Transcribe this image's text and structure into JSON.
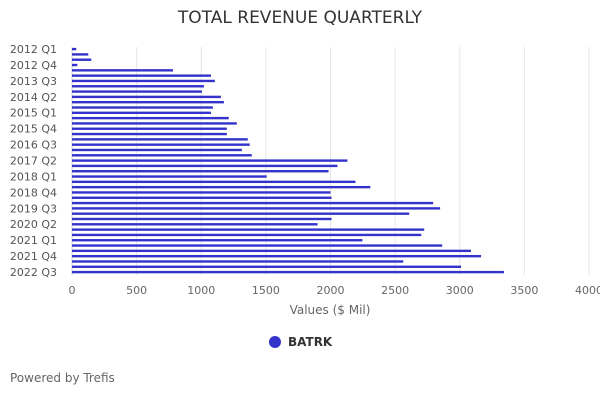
{
  "chart_data": {
    "type": "bar",
    "orientation": "horizontal",
    "title": "TOTAL REVENUE QUARTERLY",
    "xlabel": "Values ($ Mil)",
    "ylabel": "",
    "xlim": [
      0,
      4000
    ],
    "xticks": [
      0,
      500,
      1000,
      1500,
      2000,
      2500,
      3000,
      3500,
      4000
    ],
    "grid": true,
    "legend_placement": "bottom",
    "categories": [
      "2012 Q1",
      "2012 Q2",
      "2012 Q3",
      "2012 Q4",
      "2013 Q1",
      "2013 Q2",
      "2013 Q3",
      "2013 Q4",
      "2014 Q1",
      "2014 Q2",
      "2014 Q3",
      "2014 Q4",
      "2015 Q1",
      "2015 Q2",
      "2015 Q3",
      "2015 Q4",
      "2016 Q1",
      "2016 Q2",
      "2016 Q3",
      "2016 Q4",
      "2017 Q1",
      "2017 Q2",
      "2017 Q3",
      "2017 Q4",
      "2018 Q1",
      "2018 Q2",
      "2018 Q3",
      "2018 Q4",
      "2019 Q1",
      "2019 Q2",
      "2019 Q3",
      "2019 Q4",
      "2020 Q1",
      "2020 Q2",
      "2020 Q3",
      "2020 Q4",
      "2021 Q1",
      "2021 Q2",
      "2021 Q3",
      "2021 Q4",
      "2022 Q1",
      "2022 Q2",
      "2022 Q3"
    ],
    "visible_tick_labels": [
      "2012 Q1",
      "2012 Q4",
      "2013 Q3",
      "2014 Q2",
      "2015 Q1",
      "2015 Q4",
      "2016 Q3",
      "2017 Q2",
      "2018 Q1",
      "2018 Q4",
      "2019 Q3",
      "2020 Q2",
      "2021 Q1",
      "2021 Q4",
      "2022 Q3"
    ],
    "series": [
      {
        "name": "BATRK",
        "color": "#3333cc",
        "values": [
          33,
          126,
          149,
          41,
          781,
          1075,
          1105,
          1021,
          1005,
          1152,
          1175,
          1090,
          1075,
          1213,
          1275,
          1198,
          1198,
          1360,
          1375,
          1314,
          1391,
          2131,
          2054,
          1985,
          1506,
          2193,
          2308,
          2000,
          2008,
          2794,
          2848,
          2609,
          2008,
          1900,
          2725,
          2702,
          2247,
          2864,
          3087,
          3165,
          2563,
          3010,
          3342
        ]
      }
    ]
  },
  "footer": {
    "credit": "Powered by Trefis"
  }
}
